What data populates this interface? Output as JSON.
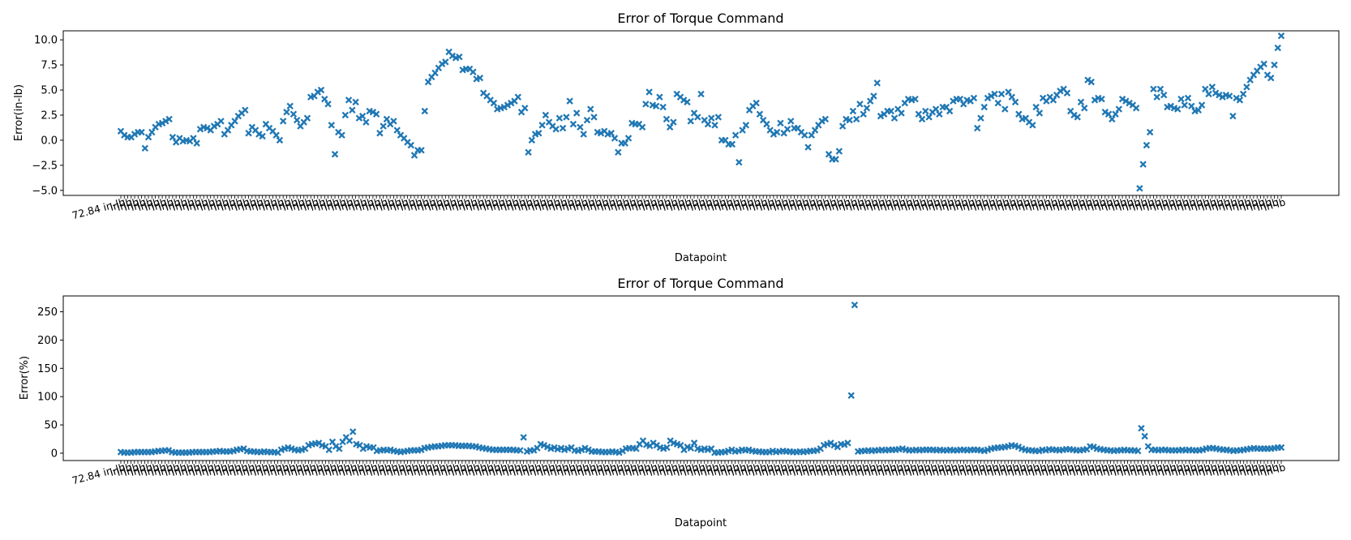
{
  "chart_data": [
    {
      "type": "scatter",
      "title": "Error of Torque Command",
      "xlabel": "Datapoint",
      "ylabel": "Error(in-lb)",
      "ylim": [
        -5.5,
        10.9
      ],
      "yticks": [
        -5.0,
        -2.5,
        0.0,
        2.5,
        5.0,
        7.5,
        10.0
      ],
      "ytick_labels": [
        "−5.0",
        "−2.5",
        "0.0",
        "2.5",
        "5.0",
        "7.5",
        "10.0"
      ],
      "x_first_tick_label": "72.84 in-lb",
      "x_tick_repeat_label": "in-lb",
      "grid": false,
      "marker": "X",
      "color": "#1f77b4",
      "values": [
        0.9,
        0.5,
        0.3,
        0.3,
        0.6,
        0.8,
        0.8,
        -0.8,
        0.3,
        0.8,
        1.3,
        1.6,
        1.7,
        1.9,
        2.1,
        0.3,
        -0.2,
        0.2,
        -0.1,
        0.0,
        -0.1,
        0.2,
        -0.3,
        1.1,
        1.3,
        1.2,
        1.0,
        1.4,
        1.6,
        1.9,
        0.6,
        1.0,
        1.5,
        1.9,
        2.4,
        2.7,
        3.0,
        0.7,
        1.3,
        1.0,
        0.6,
        0.4,
        1.6,
        1.2,
        0.9,
        0.5,
        0.0,
        1.9,
        2.8,
        3.4,
        2.6,
        2.0,
        1.4,
        1.8,
        2.2,
        4.3,
        4.4,
        4.8,
        5.0,
        4.1,
        3.6,
        1.5,
        -1.4,
        0.8,
        0.5,
        2.5,
        4.0,
        3.0,
        3.8,
        2.2,
        2.4,
        1.8,
        2.9,
        2.8,
        2.6,
        0.7,
        1.4,
        2.1,
        1.6,
        1.9,
        1.0,
        0.5,
        0.2,
        -0.2,
        -0.5,
        -1.5,
        -1.0,
        -1.0,
        2.9,
        5.8,
        6.3,
        6.7,
        7.2,
        7.6,
        7.8,
        8.8,
        8.4,
        8.2,
        8.3,
        7.0,
        7.1,
        7.1,
        6.8,
        6.1,
        6.2,
        4.7,
        4.4,
        4.0,
        3.7,
        3.1,
        3.2,
        3.3,
        3.5,
        3.7,
        3.9,
        4.3,
        2.8,
        3.2,
        -1.2,
        0.0,
        0.6,
        0.7,
        1.5,
        2.5,
        1.8,
        1.4,
        1.1,
        2.2,
        1.2,
        2.3,
        3.9,
        1.6,
        2.7,
        1.3,
        0.6,
        2.0,
        3.1,
        2.3,
        0.8,
        0.7,
        0.9,
        0.6,
        0.7,
        0.2,
        -1.2,
        -0.3,
        -0.3,
        0.2,
        1.7,
        1.6,
        1.6,
        1.3,
        3.6,
        4.8,
        3.5,
        3.4,
        4.3,
        3.3,
        2.1,
        1.3,
        1.8,
        4.6,
        4.3,
        4.0,
        3.8,
        1.9,
        2.7,
        2.3,
        4.6,
        2.0,
        1.6,
        2.2,
        1.5,
        2.3,
        0.0,
        0.0,
        -0.4,
        -0.4,
        0.5,
        -2.2,
        1.0,
        1.5,
        3.0,
        3.4,
        3.7,
        2.6,
        2.0,
        1.6,
        1.0,
        0.6,
        0.8,
        1.7,
        0.7,
        1.1,
        1.9,
        1.2,
        1.2,
        0.8,
        0.5,
        -0.7,
        0.5,
        1.0,
        1.5,
        1.9,
        2.1,
        -1.4,
        -1.9,
        -1.9,
        -1.1,
        1.4,
        2.1,
        2.0,
        2.9,
        2.1,
        3.6,
        2.6,
        3.2,
        3.9,
        4.4,
        5.7,
        2.4,
        2.6,
        2.9,
        2.9,
        2.2,
        3.1,
        2.7,
        3.7,
        4.1,
        4.0,
        4.1,
        2.6,
        2.1,
        2.9,
        2.3,
        2.8,
        3.1,
        2.6,
        3.3,
        3.3,
        2.9,
        3.9,
        4.1,
        4.1,
        3.6,
        4.0,
        3.9,
        4.2,
        1.2,
        2.2,
        3.3,
        4.2,
        4.4,
        4.6,
        3.7,
        4.6,
        3.1,
        4.8,
        4.3,
        3.8,
        2.6,
        2.1,
        2.2,
        1.8,
        1.5,
        3.3,
        2.7,
        4.2,
        3.9,
        4.3,
        4.0,
        4.5,
        4.9,
        5.1,
        4.7,
        2.9,
        2.5,
        2.3,
        3.8,
        3.2,
        6.0,
        5.8,
        4.0,
        4.2,
        4.1,
        2.8,
        2.6,
        2.1,
        2.6,
        3.1,
        4.1,
        3.9,
        3.7,
        3.5,
        3.2,
        -4.8,
        -2.4,
        -0.5,
        0.8,
        5.1,
        4.3,
        5.1,
        4.5,
        3.3,
        3.4,
        3.2,
        3.1,
        4.1,
        3.5,
        4.2,
        3.4,
        2.9,
        3.0,
        3.5,
        5.1,
        4.6,
        5.3,
        4.7,
        4.5,
        4.3,
        4.5,
        4.4,
        2.4,
        4.2,
        4.0,
        4.6,
        5.3,
        6.0,
        6.5,
        6.9,
        7.3,
        7.6,
        6.5,
        6.2,
        7.5,
        9.2,
        10.4
      ]
    },
    {
      "type": "scatter",
      "title": "Error of Torque Command",
      "xlabel": "Datapoint",
      "ylabel": "Error(%)",
      "ylim": [
        -13,
        278
      ],
      "yticks": [
        0,
        50,
        100,
        150,
        200,
        250
      ],
      "ytick_labels": [
        "0",
        "50",
        "100",
        "150",
        "200",
        "250"
      ],
      "x_first_tick_label": "72.84 in-lb",
      "x_tick_repeat_label": "in-lb",
      "grid": false,
      "marker": "X",
      "color": "#1f77b4",
      "values": [
        2,
        1,
        1,
        1,
        2,
        2,
        2,
        2,
        2,
        2,
        3,
        4,
        4,
        5,
        5,
        2,
        1,
        1,
        1,
        1,
        1,
        2,
        2,
        2,
        2,
        2,
        2,
        3,
        3,
        4,
        3,
        3,
        3,
        4,
        6,
        7,
        8,
        4,
        3,
        3,
        2,
        2,
        3,
        2,
        2,
        2,
        1,
        6,
        8,
        10,
        8,
        6,
        5,
        6,
        8,
        14,
        16,
        17,
        18,
        14,
        12,
        6,
        20,
        12,
        8,
        20,
        28,
        22,
        38,
        16,
        14,
        8,
        12,
        10,
        10,
        4,
        5,
        6,
        5,
        6,
        4,
        3,
        2,
        3,
        4,
        5,
        5,
        5,
        6,
        9,
        10,
        11,
        12,
        12,
        13,
        14,
        14,
        14,
        14,
        13,
        13,
        13,
        13,
        12,
        12,
        10,
        9,
        8,
        7,
        6,
        6,
        6,
        6,
        6,
        6,
        6,
        5,
        5,
        28,
        3,
        5,
        5,
        9,
        16,
        14,
        11,
        8,
        10,
        7,
        9,
        6,
        8,
        10,
        5,
        4,
        6,
        9,
        6,
        3,
        3,
        3,
        2,
        2,
        2,
        3,
        2,
        1,
        4,
        8,
        9,
        9,
        8,
        16,
        22,
        15,
        13,
        18,
        14,
        10,
        8,
        10,
        22,
        18,
        16,
        14,
        6,
        11,
        9,
        18,
        8,
        6,
        8,
        6,
        8,
        1,
        1,
        2,
        2,
        4,
        6,
        3,
        4,
        6,
        5,
        6,
        4,
        3,
        3,
        2,
        2,
        2,
        4,
        2,
        3,
        4,
        3,
        3,
        2,
        2,
        3,
        2,
        3,
        4,
        4,
        5,
        8,
        14,
        16,
        18,
        14,
        11,
        16,
        15,
        18,
        102,
        262,
        3,
        4,
        4,
        5,
        4,
        5,
        5,
        6,
        5,
        6,
        6,
        6,
        7,
        8,
        6,
        5,
        5,
        6,
        5,
        6,
        6,
        6,
        6,
        5,
        6,
        5,
        5,
        6,
        5,
        5,
        6,
        6,
        5,
        6,
        6,
        6,
        5,
        4,
        6,
        8,
        9,
        10,
        10,
        11,
        12,
        14,
        13,
        11,
        8,
        6,
        5,
        5,
        4,
        4,
        6,
        5,
        7,
        6,
        6,
        5,
        6,
        7,
        7,
        6,
        5,
        5,
        6,
        7,
        12,
        11,
        8,
        7,
        6,
        5,
        5,
        4,
        5,
        5,
        6,
        5,
        5,
        5,
        4,
        44,
        30,
        12,
        6,
        6,
        5,
        6,
        6,
        5,
        5,
        5,
        5,
        6,
        5,
        6,
        5,
        5,
        5,
        6,
        8,
        9,
        9,
        8,
        7,
        6,
        6,
        5,
        4,
        5,
        5,
        6,
        7,
        8,
        9,
        8,
        8,
        8,
        8,
        8,
        9,
        10,
        10
      ]
    }
  ]
}
